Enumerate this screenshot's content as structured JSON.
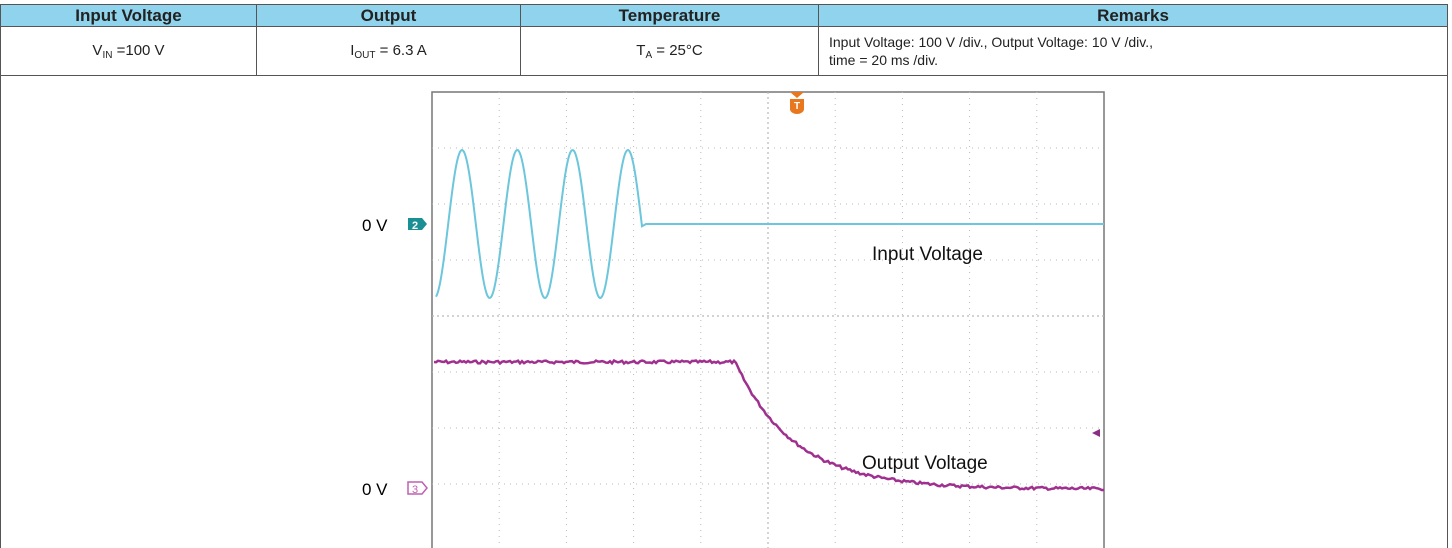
{
  "table": {
    "header": [
      "Input Voltage",
      "Output",
      "Temperature",
      "Remarks"
    ],
    "row": [
      {
        "main": "V",
        "sub": "IN",
        "rest": " =100 V"
      },
      {
        "main": "I",
        "sub": "OUT",
        "rest": " = 6.3 A"
      },
      {
        "main": "T",
        "sub": "A",
        "rest": " = 25°C"
      },
      {
        "lines": [
          "Input Voltage: 100 V /div., Output Voltage: 10 V /div.,",
          "time = 20 ms /div."
        ]
      }
    ]
  },
  "scope": {
    "channel_2_level": "0 V",
    "channel_2_marker": "2",
    "channel_3_level": "0 V",
    "channel_3_marker": "3",
    "trigger_marker": "T",
    "trace_labels": [
      "Input Voltage",
      "Output Voltage"
    ]
  }
}
